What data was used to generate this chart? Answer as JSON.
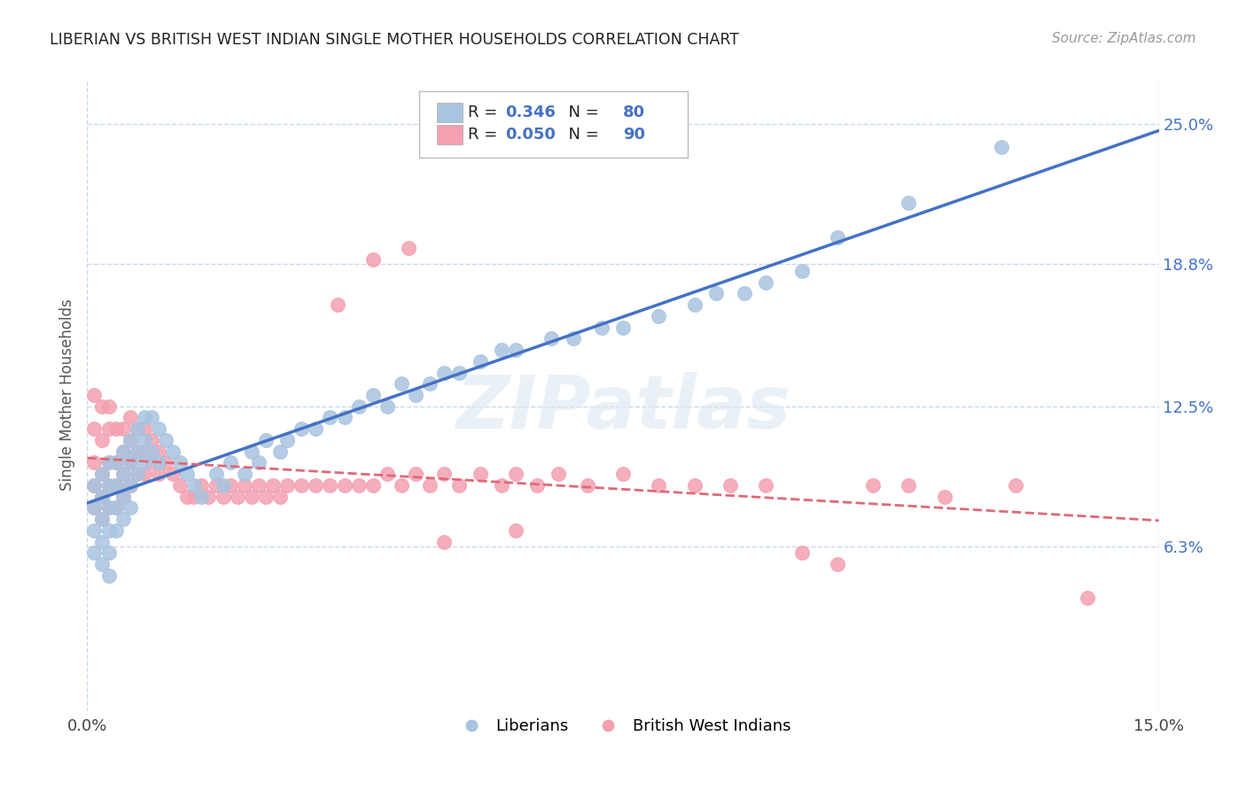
{
  "title": "LIBERIAN VS BRITISH WEST INDIAN SINGLE MOTHER HOUSEHOLDS CORRELATION CHART",
  "source": "Source: ZipAtlas.com",
  "ylabel": "Single Mother Households",
  "xlim": [
    0.0,
    0.15
  ],
  "ylim": [
    -0.01,
    0.27
  ],
  "y_tick_vals": [
    0.063,
    0.125,
    0.188,
    0.25
  ],
  "y_tick_labels": [
    "6.3%",
    "12.5%",
    "18.8%",
    "25.0%"
  ],
  "liberian_R": "0.346",
  "liberian_N": "80",
  "bwi_R": "0.050",
  "bwi_N": "90",
  "liberian_color": "#a8c4e0",
  "bwi_color": "#f4a0b0",
  "line_liberian_color": "#4472c4",
  "line_bwi_color": "#e06878",
  "legend_label_liberian": "Liberians",
  "legend_label_bwi": "British West Indians",
  "watermark": "ZIPatlas",
  "background_color": "#ffffff",
  "grid_color": "#c8d8ec",
  "liberian_x": [
    0.001,
    0.001,
    0.001,
    0.001,
    0.002,
    0.002,
    0.002,
    0.002,
    0.002,
    0.003,
    0.003,
    0.003,
    0.003,
    0.003,
    0.003,
    0.004,
    0.004,
    0.004,
    0.004,
    0.005,
    0.005,
    0.005,
    0.005,
    0.006,
    0.006,
    0.006,
    0.006,
    0.007,
    0.007,
    0.007,
    0.008,
    0.008,
    0.008,
    0.009,
    0.009,
    0.01,
    0.01,
    0.011,
    0.012,
    0.013,
    0.014,
    0.015,
    0.016,
    0.018,
    0.019,
    0.02,
    0.022,
    0.023,
    0.024,
    0.025,
    0.027,
    0.028,
    0.03,
    0.032,
    0.034,
    0.036,
    0.038,
    0.04,
    0.042,
    0.044,
    0.046,
    0.048,
    0.05,
    0.052,
    0.055,
    0.058,
    0.06,
    0.065,
    0.068,
    0.072,
    0.075,
    0.08,
    0.085,
    0.088,
    0.092,
    0.095,
    0.1,
    0.105,
    0.115,
    0.128
  ],
  "liberian_y": [
    0.09,
    0.08,
    0.07,
    0.06,
    0.095,
    0.085,
    0.075,
    0.065,
    0.055,
    0.1,
    0.09,
    0.08,
    0.07,
    0.06,
    0.05,
    0.1,
    0.09,
    0.08,
    0.07,
    0.105,
    0.095,
    0.085,
    0.075,
    0.11,
    0.1,
    0.09,
    0.08,
    0.115,
    0.105,
    0.095,
    0.12,
    0.11,
    0.1,
    0.12,
    0.105,
    0.115,
    0.1,
    0.11,
    0.105,
    0.1,
    0.095,
    0.09,
    0.085,
    0.095,
    0.09,
    0.1,
    0.095,
    0.105,
    0.1,
    0.11,
    0.105,
    0.11,
    0.115,
    0.115,
    0.12,
    0.12,
    0.125,
    0.13,
    0.125,
    0.135,
    0.13,
    0.135,
    0.14,
    0.14,
    0.145,
    0.15,
    0.15,
    0.155,
    0.155,
    0.16,
    0.16,
    0.165,
    0.17,
    0.175,
    0.175,
    0.18,
    0.185,
    0.2,
    0.215,
    0.24
  ],
  "bwi_x": [
    0.001,
    0.001,
    0.001,
    0.001,
    0.001,
    0.002,
    0.002,
    0.002,
    0.002,
    0.002,
    0.003,
    0.003,
    0.003,
    0.003,
    0.003,
    0.004,
    0.004,
    0.004,
    0.004,
    0.005,
    0.005,
    0.005,
    0.005,
    0.006,
    0.006,
    0.006,
    0.006,
    0.007,
    0.007,
    0.007,
    0.008,
    0.008,
    0.008,
    0.009,
    0.009,
    0.01,
    0.01,
    0.011,
    0.012,
    0.013,
    0.014,
    0.015,
    0.016,
    0.017,
    0.018,
    0.019,
    0.02,
    0.021,
    0.022,
    0.023,
    0.024,
    0.025,
    0.026,
    0.027,
    0.028,
    0.03,
    0.032,
    0.034,
    0.036,
    0.038,
    0.04,
    0.042,
    0.044,
    0.046,
    0.048,
    0.05,
    0.052,
    0.055,
    0.058,
    0.06,
    0.063,
    0.066,
    0.07,
    0.075,
    0.08,
    0.085,
    0.09,
    0.095,
    0.1,
    0.105,
    0.11,
    0.115,
    0.12,
    0.13,
    0.14,
    0.035,
    0.04,
    0.045,
    0.05,
    0.06
  ],
  "bwi_y": [
    0.1,
    0.09,
    0.08,
    0.115,
    0.13,
    0.095,
    0.085,
    0.075,
    0.11,
    0.125,
    0.1,
    0.09,
    0.08,
    0.115,
    0.125,
    0.1,
    0.09,
    0.08,
    0.115,
    0.105,
    0.095,
    0.085,
    0.115,
    0.11,
    0.1,
    0.09,
    0.12,
    0.115,
    0.105,
    0.095,
    0.115,
    0.105,
    0.095,
    0.11,
    0.1,
    0.105,
    0.095,
    0.1,
    0.095,
    0.09,
    0.085,
    0.085,
    0.09,
    0.085,
    0.09,
    0.085,
    0.09,
    0.085,
    0.09,
    0.085,
    0.09,
    0.085,
    0.09,
    0.085,
    0.09,
    0.09,
    0.09,
    0.09,
    0.09,
    0.09,
    0.09,
    0.095,
    0.09,
    0.095,
    0.09,
    0.095,
    0.09,
    0.095,
    0.09,
    0.095,
    0.09,
    0.095,
    0.09,
    0.095,
    0.09,
    0.09,
    0.09,
    0.09,
    0.06,
    0.055,
    0.09,
    0.09,
    0.085,
    0.09,
    0.04,
    0.17,
    0.19,
    0.195,
    0.065,
    0.07
  ]
}
